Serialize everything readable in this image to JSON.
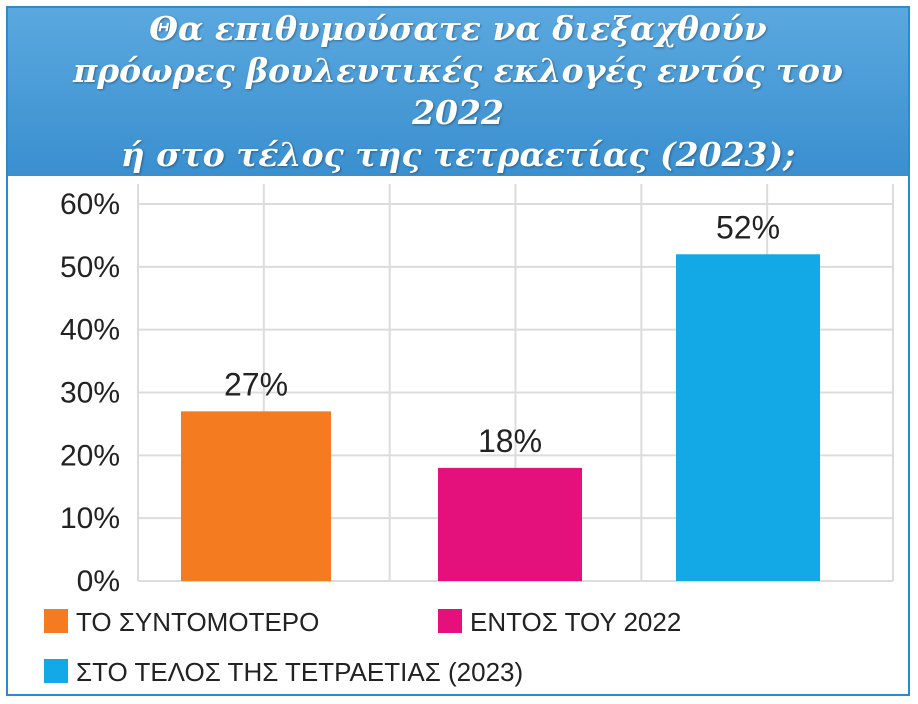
{
  "title_lines": [
    "Θα επιθυμούσατε να διεξαχθούν",
    "πρόωρες βουλευτικές εκλογές εντός του 2022",
    "ή στο τέλος της τετραετίας (2023);"
  ],
  "chart_data": {
    "type": "bar",
    "title": "Θα επιθυμούσατε να διεξαχθούν πρόωρες βουλευτικές εκλογές εντός του 2022 ή στο τέλος της τετραετίας (2023);",
    "categories": [
      "ΤΟ ΣΥΝΤΟΜΟΤΕΡΟ",
      "ΕΝΤΟΣ ΤΟΥ 2022",
      "ΣΤΟ ΤΕΛΟΣ ΤΗΣ ΤΕΤΡΑΕΤΙΑΣ (2023)"
    ],
    "values": [
      27,
      18,
      52
    ],
    "data_labels": [
      "27%",
      "18%",
      "52%"
    ],
    "colors": [
      "#f47b20",
      "#e4117d",
      "#13a9e6"
    ],
    "ylim": [
      0,
      60
    ],
    "yticks": [
      0,
      10,
      20,
      30,
      40,
      50,
      60
    ],
    "ytick_labels": [
      "0%",
      "10%",
      "20%",
      "30%",
      "40%",
      "50%",
      "60%"
    ],
    "xlabel": "",
    "ylabel": "",
    "grid": "on",
    "legend": "bottom",
    "legend_entries": [
      "ΤΟ ΣΥΝΤΟΜΟΤΕΡΟ",
      "ΕΝΤΟΣ ΤΟΥ 2022",
      "ΣΤΟ ΤΕΛΟΣ ΤΗΣ ΤΕΤΡΑΕΤΙΑΣ (2023)"
    ],
    "background_color": "#ffffff",
    "title_bar_color": "#4a9dd8",
    "grid_color": "#dcdcdc"
  }
}
